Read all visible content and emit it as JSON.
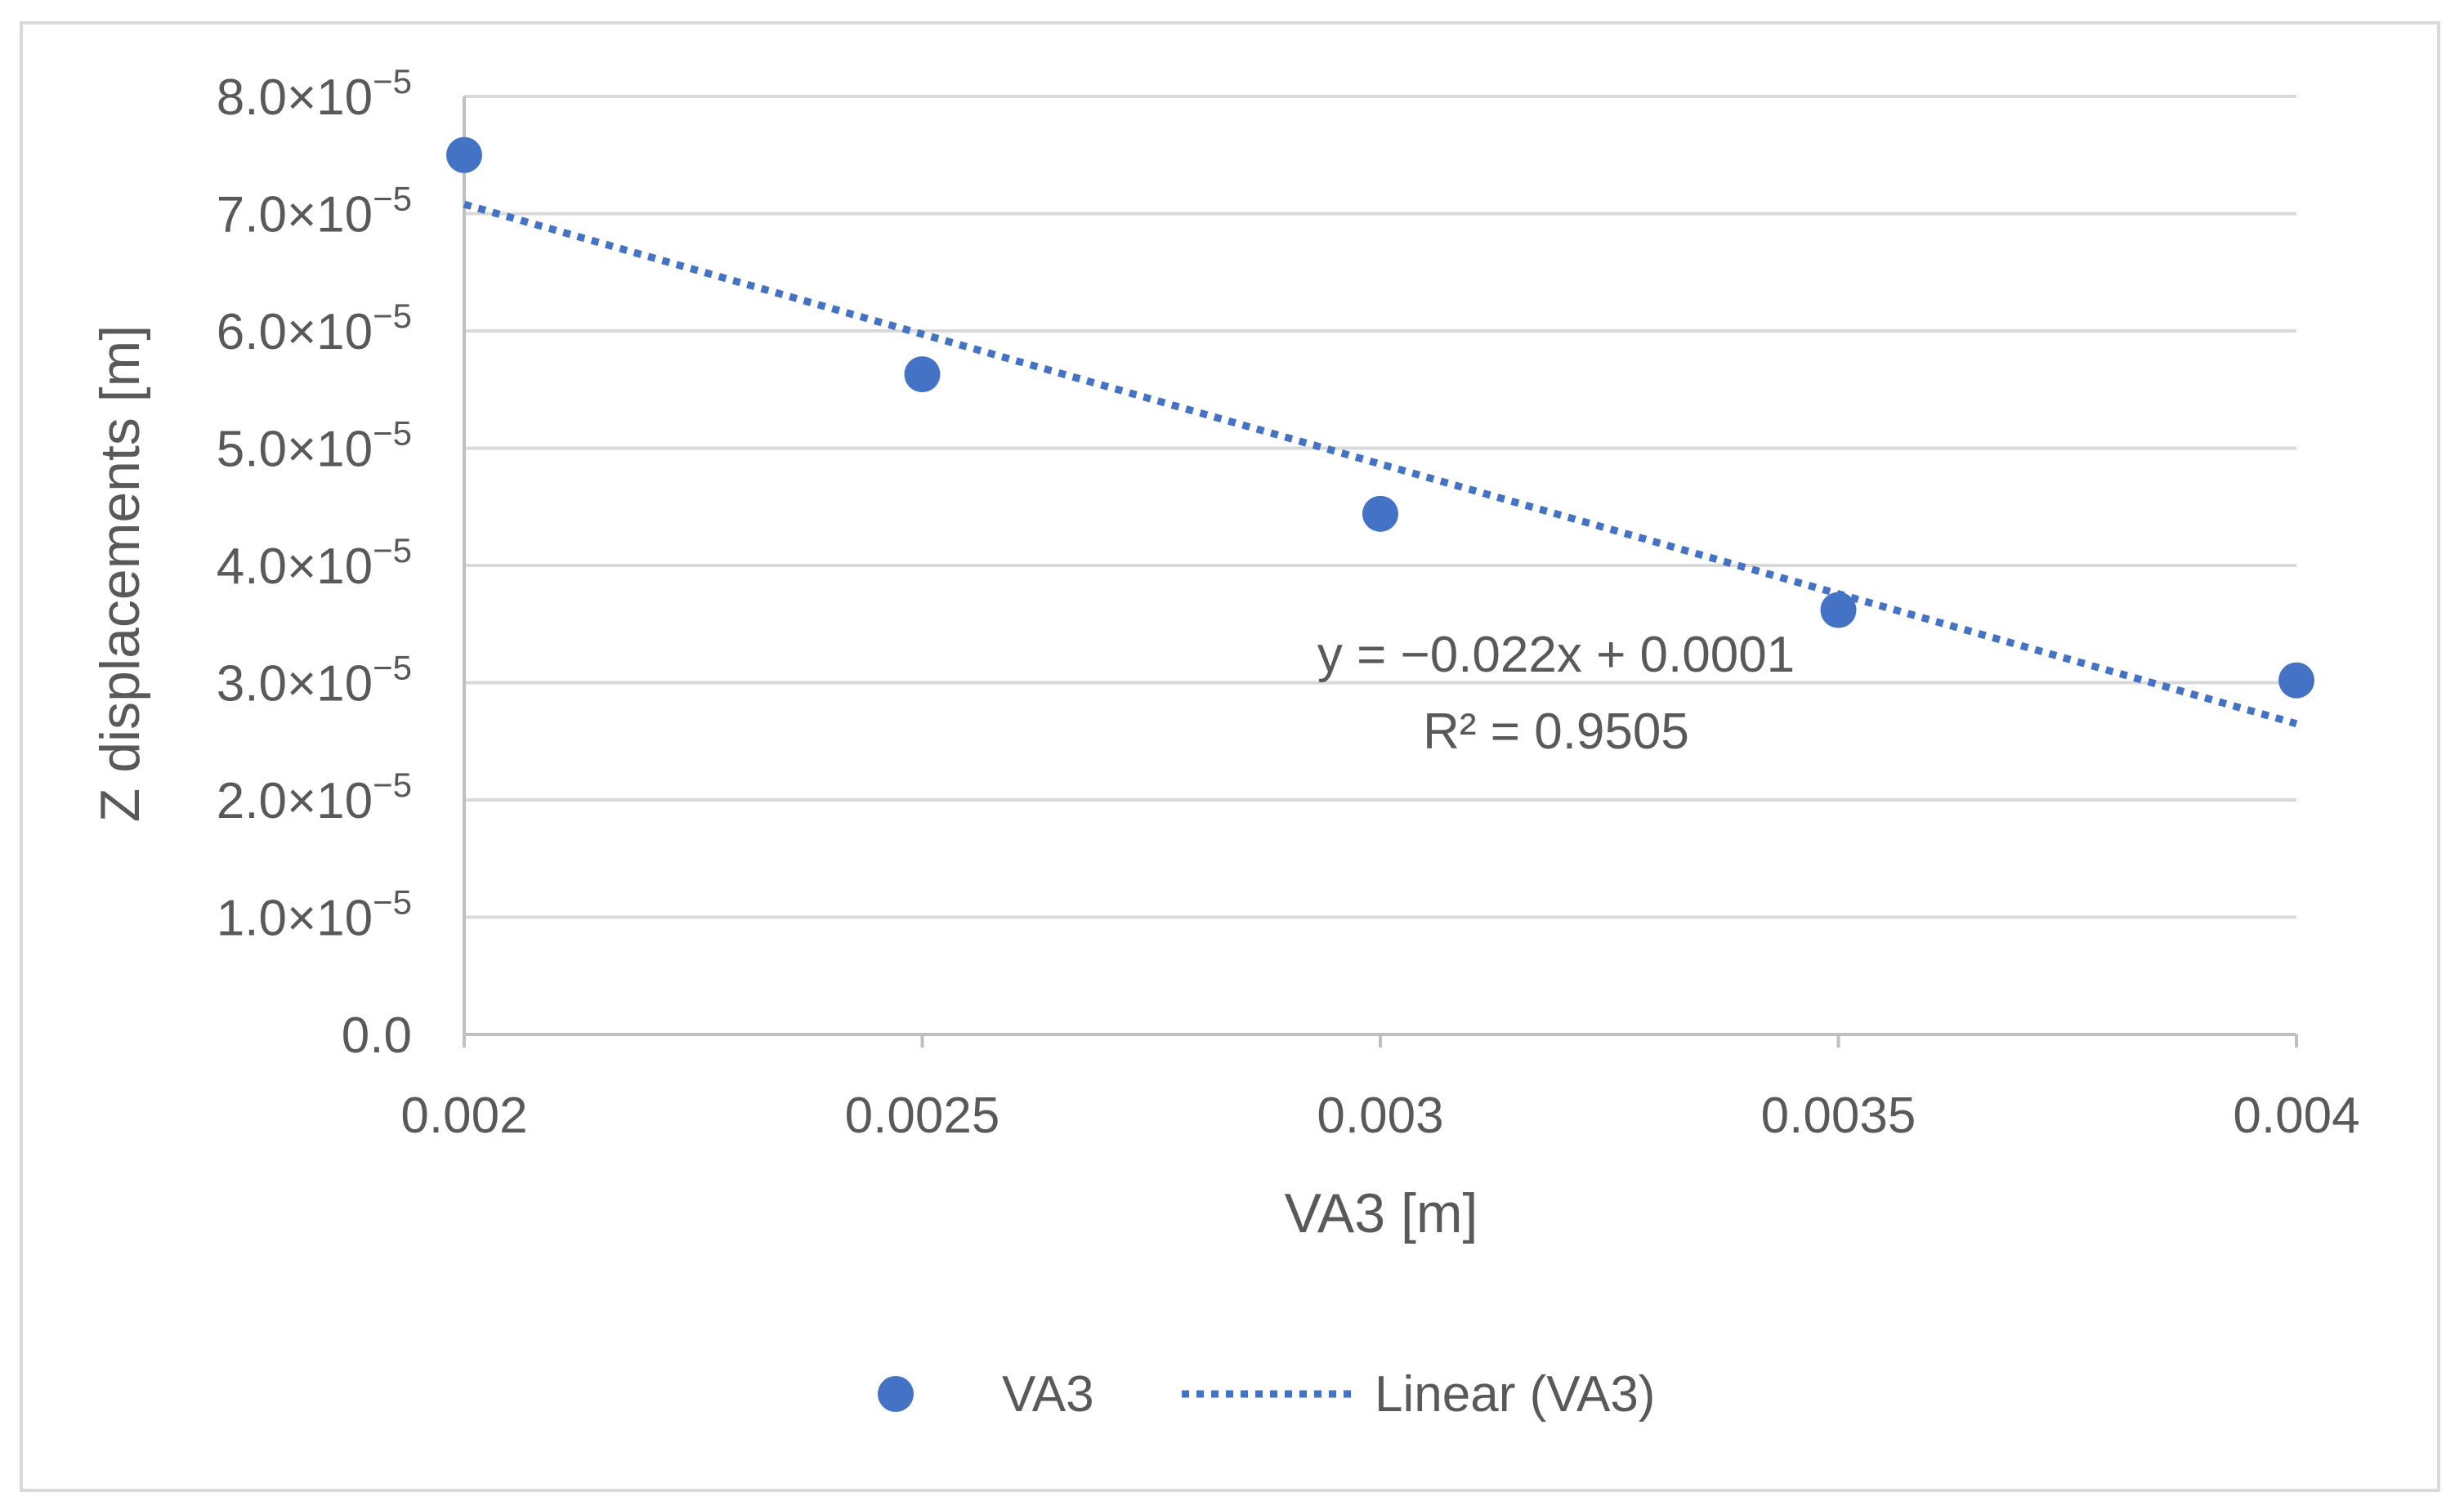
{
  "chart_data": {
    "type": "scatter",
    "title": "",
    "xlabel": "VA3 [m]",
    "ylabel": "Z displacements [m]",
    "xlim": [
      0.002,
      0.004
    ],
    "ylim": [
      0,
      8e-05
    ],
    "x_ticks": [
      0.002,
      0.0025,
      0.003,
      0.0035,
      0.004
    ],
    "x_tick_labels": [
      "0.002",
      "0.0025",
      "0.003",
      "0.0035",
      "0.004"
    ],
    "y_ticks": [
      0,
      1e-05,
      2e-05,
      3e-05,
      4e-05,
      5e-05,
      6e-05,
      7e-05,
      8e-05
    ],
    "y_tick_labels": [
      {
        "mantissa": "0.0",
        "exponent": ""
      },
      {
        "mantissa": "1.0×10",
        "exponent": "−5"
      },
      {
        "mantissa": "2.0×10",
        "exponent": "−5"
      },
      {
        "mantissa": "3.0×10",
        "exponent": "−5"
      },
      {
        "mantissa": "4.0×10",
        "exponent": "−5"
      },
      {
        "mantissa": "5.0×10",
        "exponent": "−5"
      },
      {
        "mantissa": "6.0×10",
        "exponent": "−5"
      },
      {
        "mantissa": "7.0×10",
        "exponent": "−5"
      },
      {
        "mantissa": "8.0×10",
        "exponent": "−5"
      }
    ],
    "grid": true,
    "legend_position": "bottom",
    "series": [
      {
        "name": "VA3",
        "color": "#4472c4",
        "x": [
          0.002,
          0.0025,
          0.003,
          0.0035,
          0.004
        ],
        "y": [
          7.5e-05,
          5.63e-05,
          4.44e-05,
          3.62e-05,
          3.02e-05
        ]
      }
    ],
    "trendline": {
      "name": "Linear (VA3)",
      "color": "#4472c4",
      "style": "dotted",
      "x": [
        0.002,
        0.004
      ],
      "y": [
        7.08e-05,
        2.65e-05
      ],
      "equation": "y = −0.022x + 0.0001",
      "r_squared": "R² = 0.9505"
    }
  }
}
